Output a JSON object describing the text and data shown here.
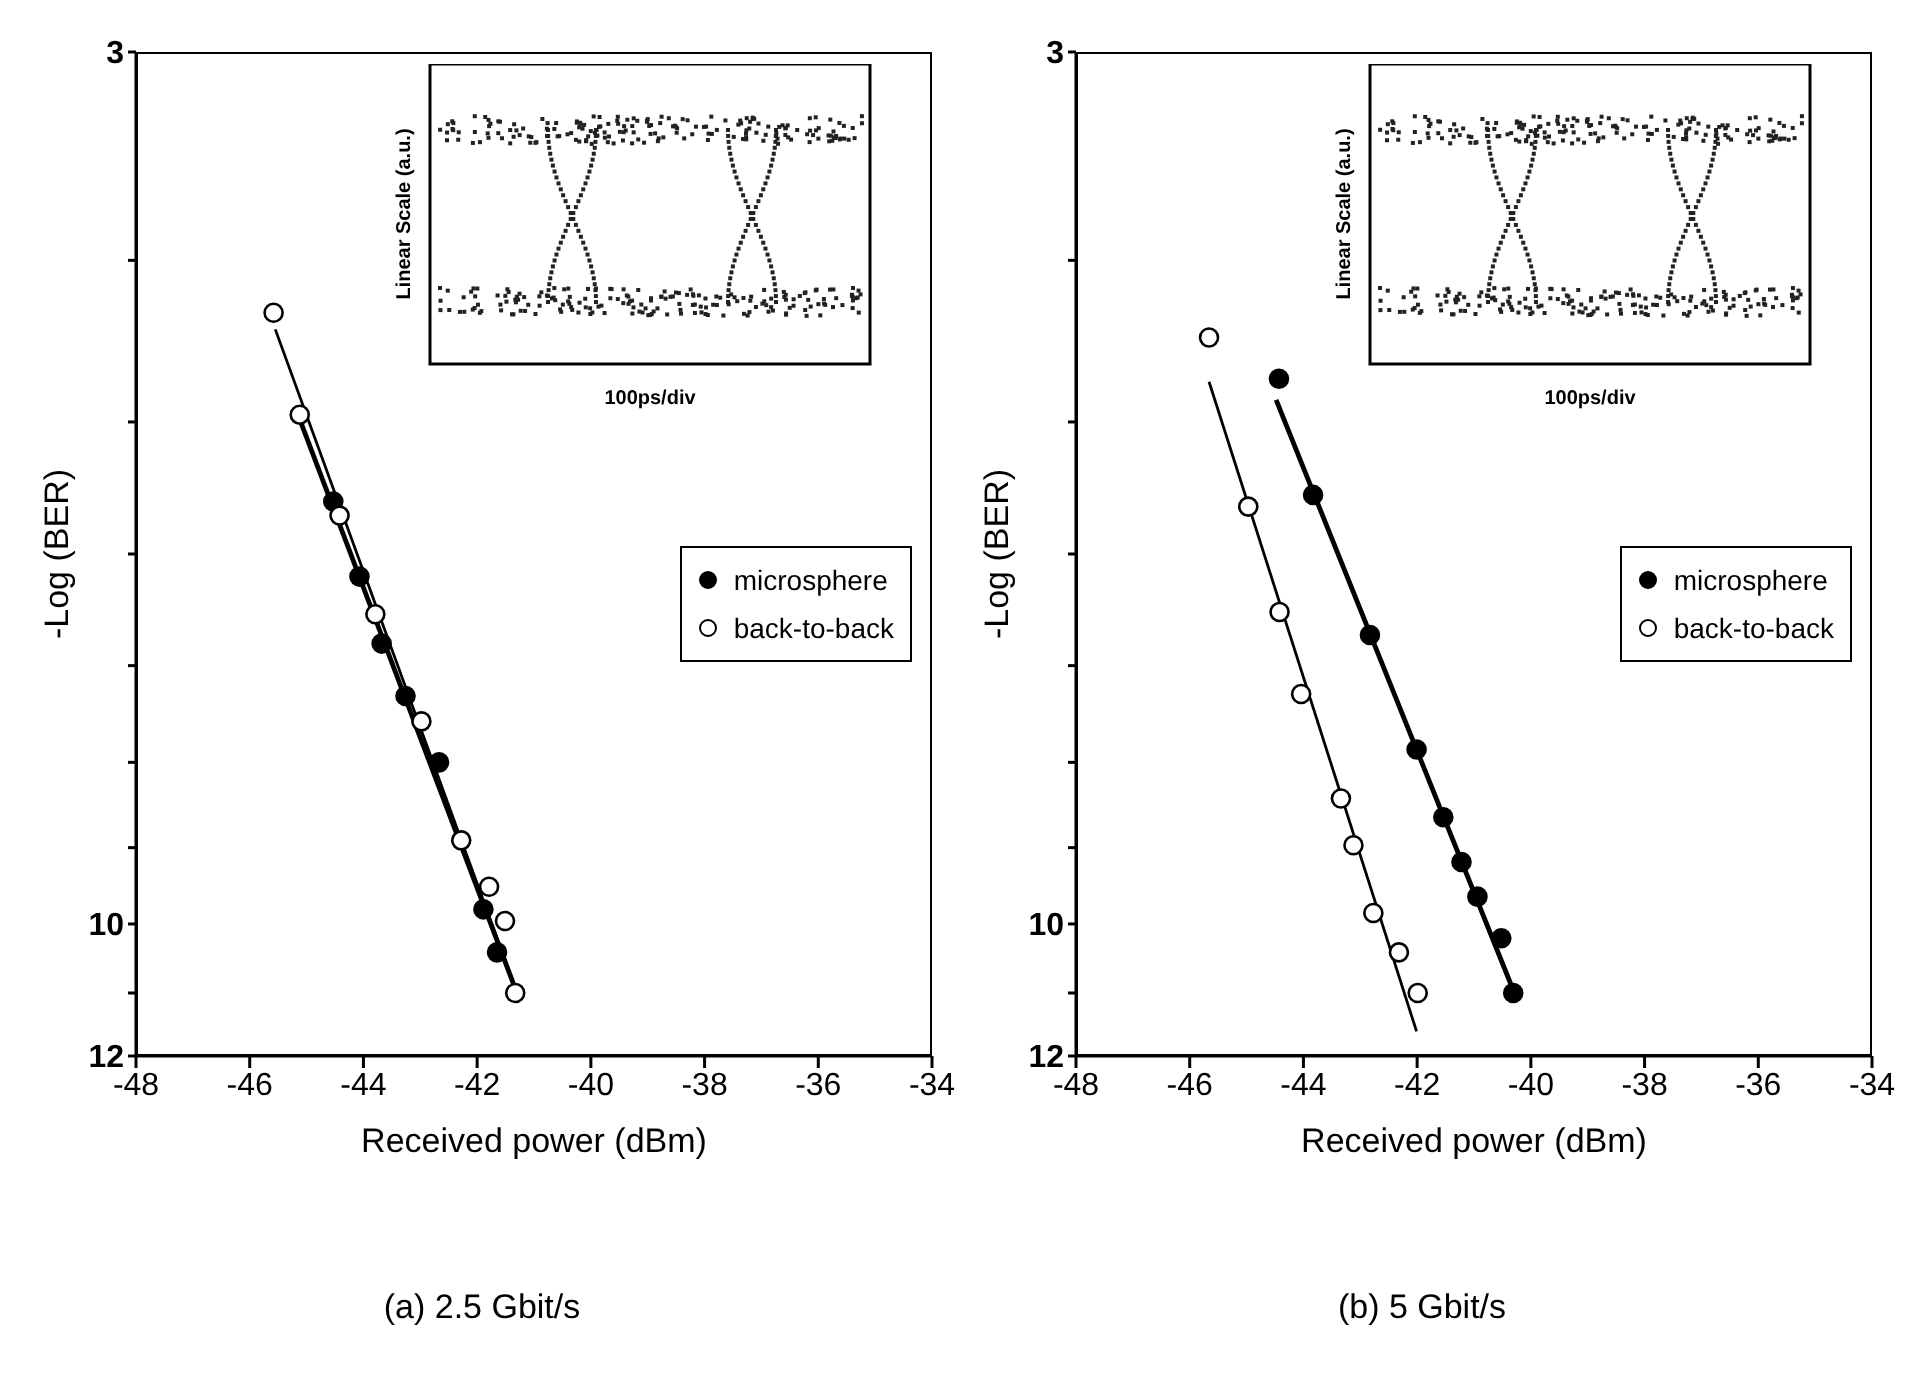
{
  "chart_data": [
    {
      "type": "scatter",
      "title": "(a) 2.5 Gbit/s",
      "xlabel": "Received power (dBm)",
      "ylabel": "-Log (BER)",
      "log": "y",
      "xlim": [
        -48,
        -34
      ],
      "xticks": [
        -48,
        -46,
        -44,
        -42,
        -40,
        -38,
        -36,
        -34
      ],
      "ylim": [
        12,
        3
      ],
      "yticks": [
        3,
        {
          "value": 4,
          "label": null
        },
        {
          "value": 5,
          "label": null
        },
        {
          "value": 6,
          "label": null
        },
        {
          "value": 7,
          "label": null
        },
        {
          "value": 8,
          "label": null
        },
        {
          "value": 9,
          "label": null
        },
        10,
        {
          "value": 11,
          "label": null
        },
        12
      ],
      "legend": "right",
      "marker": "circle",
      "annotations": [
        "Linear Scale (a.u.)",
        "100ps/div"
      ],
      "series": [
        {
          "name": "microsphere",
          "color": "#000000",
          "x": [
            -44.53,
            -44.07,
            -43.68,
            -43.26,
            -42.67,
            -41.89,
            -41.65
          ],
          "values": [
            5.58,
            6.19,
            6.79,
            7.3,
            8.0,
            9.8,
            10.4
          ]
        },
        {
          "name": "back-to-back",
          "color": "#000000",
          "x": [
            -45.58,
            -45.12,
            -44.42,
            -43.79,
            -42.98,
            -42.28,
            -41.79,
            -41.51,
            -41.33
          ],
          "values": [
            4.3,
            4.95,
            5.69,
            6.52,
            7.56,
            8.91,
            9.5,
            9.96,
            11.0
          ]
        },
        {
          "type": "line",
          "color": "#000000",
          "marker": "none",
          "x": [
            -45.55,
            -41.3
          ],
          "values": [
            4.4,
            11.0
          ]
        },
        {
          "type": "line",
          "color": "#000000",
          "marker": "none",
          "x": [
            -45.2,
            -41.3
          ],
          "values": [
            4.9,
            11.0
          ]
        }
      ]
    },
    {
      "type": "scatter",
      "title": "(b) 5 Gbit/s",
      "xlabel": "Received power (dBm)",
      "ylabel": "-Log (BER)",
      "log": "y",
      "xlim": [
        -48,
        -34
      ],
      "xticks": [
        -48,
        -46,
        -44,
        -42,
        -40,
        -38,
        -36,
        -34
      ],
      "ylim": [
        12,
        3
      ],
      "yticks": [
        3,
        {
          "value": 4,
          "label": null
        },
        {
          "value": 5,
          "label": null
        },
        {
          "value": 6,
          "label": null
        },
        {
          "value": 7,
          "label": null
        },
        {
          "value": 8,
          "label": null
        },
        {
          "value": 9,
          "label": null
        },
        10,
        {
          "value": 11,
          "label": null
        },
        12
      ],
      "legend": "right",
      "marker": "circle",
      "annotations": [
        "Linear Scale (a.u.)",
        "100ps/div"
      ],
      "series": [
        {
          "name": "microsphere",
          "color": "#000000",
          "x": [
            -44.43,
            -43.83,
            -42.83,
            -42.01,
            -41.54,
            -41.22,
            -40.94,
            -40.52,
            -40.31
          ],
          "values": [
            4.71,
            5.53,
            6.71,
            7.86,
            8.63,
            9.18,
            9.63,
            10.2,
            11.0
          ]
        },
        {
          "name": "back-to-back",
          "color": "#000000",
          "x": [
            -45.66,
            -44.97,
            -44.42,
            -44.04,
            -43.34,
            -43.12,
            -42.77,
            -42.32,
            -41.99
          ],
          "values": [
            4.45,
            5.62,
            6.5,
            7.28,
            8.41,
            8.97,
            9.85,
            10.4,
            11.0
          ]
        },
        {
          "type": "line",
          "color": "#000000",
          "marker": "none",
          "x": [
            -45.66,
            -42.01
          ],
          "values": [
            4.73,
            11.6
          ]
        },
        {
          "type": "line",
          "color": "#000000",
          "marker": "none",
          "x": [
            -44.48,
            -40.29
          ],
          "values": [
            4.85,
            11.0
          ]
        }
      ]
    }
  ]
}
